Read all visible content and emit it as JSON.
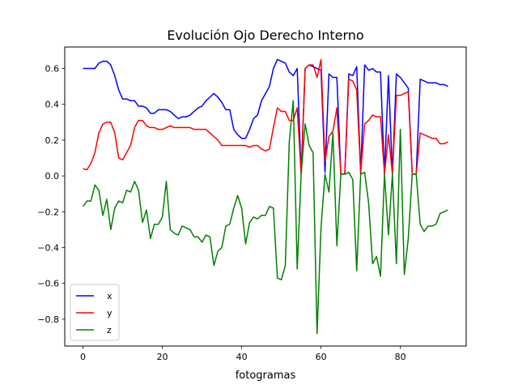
{
  "chart_data": {
    "type": "line",
    "title": "Evolución Ojo Derecho Interno",
    "xlabel": "fotogramas",
    "ylabel": "",
    "xlim": [
      -4.6,
      96.6
    ],
    "ylim": [
      -0.95,
      0.72
    ],
    "xticks": [
      0,
      20,
      40,
      60,
      80
    ],
    "yticks": [
      -0.8,
      -0.6,
      -0.4,
      -0.2,
      0.0,
      0.2,
      0.4,
      0.6
    ],
    "xtick_labels": [
      "0",
      "20",
      "40",
      "60",
      "80"
    ],
    "ytick_labels": [
      "−0.8",
      "−0.6",
      "−0.4",
      "−0.2",
      "0.0",
      "0.2",
      "0.4",
      "0.6"
    ],
    "grid": false,
    "legend_position": "lower-left",
    "x": [
      0,
      1,
      2,
      3,
      4,
      5,
      6,
      7,
      8,
      9,
      10,
      11,
      12,
      13,
      14,
      15,
      16,
      17,
      18,
      19,
      20,
      21,
      22,
      23,
      24,
      25,
      26,
      27,
      28,
      29,
      30,
      31,
      32,
      33,
      34,
      35,
      36,
      37,
      38,
      39,
      40,
      41,
      42,
      43,
      44,
      45,
      46,
      47,
      48,
      49,
      50,
      51,
      52,
      53,
      54,
      55,
      56,
      57,
      58,
      59,
      60,
      61,
      62,
      63,
      64,
      65,
      66,
      67,
      68,
      69,
      70,
      71,
      72,
      73,
      74,
      75,
      76,
      77,
      78,
      79,
      80,
      81,
      82,
      83,
      84,
      85,
      86,
      87,
      88,
      89,
      90,
      91,
      92
    ],
    "series": [
      {
        "name": "x",
        "color": "#0000ff",
        "values": [
          0.6,
          0.6,
          0.6,
          0.6,
          0.63,
          0.64,
          0.64,
          0.62,
          0.56,
          0.48,
          0.43,
          0.43,
          0.42,
          0.42,
          0.39,
          0.39,
          0.38,
          0.35,
          0.35,
          0.37,
          0.37,
          0.37,
          0.36,
          0.34,
          0.32,
          0.33,
          0.33,
          0.34,
          0.36,
          0.38,
          0.39,
          0.42,
          0.44,
          0.46,
          0.44,
          0.41,
          0.37,
          0.37,
          0.26,
          0.23,
          0.21,
          0.21,
          0.26,
          0.32,
          0.34,
          0.42,
          0.46,
          0.5,
          0.6,
          0.65,
          0.64,
          0.63,
          0.58,
          0.56,
          0.6,
          0.01,
          0.6,
          0.62,
          0.61,
          0.6,
          0.59,
          0.02,
          0.57,
          0.55,
          0.55,
          0.01,
          0.01,
          0.57,
          0.56,
          0.61,
          0.01,
          0.62,
          0.59,
          0.6,
          0.58,
          0.58,
          0.01,
          0.56,
          0.01,
          0.57,
          0.55,
          0.52,
          0.49,
          0.01,
          0.01,
          0.54,
          0.53,
          0.52,
          0.52,
          0.52,
          0.51,
          0.51,
          0.5
        ]
      },
      {
        "name": "y",
        "color": "#ff0000",
        "values": [
          0.04,
          0.035,
          0.07,
          0.13,
          0.24,
          0.29,
          0.3,
          0.3,
          0.24,
          0.1,
          0.09,
          0.13,
          0.17,
          0.27,
          0.31,
          0.31,
          0.28,
          0.27,
          0.27,
          0.26,
          0.26,
          0.27,
          0.28,
          0.27,
          0.27,
          0.27,
          0.27,
          0.27,
          0.26,
          0.26,
          0.26,
          0.26,
          0.24,
          0.22,
          0.2,
          0.17,
          0.17,
          0.17,
          0.17,
          0.17,
          0.17,
          0.17,
          0.16,
          0.17,
          0.17,
          0.15,
          0.14,
          0.15,
          0.27,
          0.38,
          0.36,
          0.36,
          0.31,
          0.31,
          0.38,
          0.01,
          0.6,
          0.62,
          0.62,
          0.55,
          0.65,
          0.08,
          0.22,
          0.25,
          0.38,
          0.01,
          0.01,
          0.54,
          0.53,
          0.48,
          0.02,
          0.29,
          0.31,
          0.34,
          0.33,
          0.33,
          0.01,
          0.23,
          0.01,
          0.45,
          0.45,
          0.46,
          0.47,
          0.01,
          0.01,
          0.24,
          0.23,
          0.22,
          0.21,
          0.21,
          0.18,
          0.18,
          0.19
        ]
      },
      {
        "name": "z",
        "color": "#008000",
        "values": [
          -0.17,
          -0.14,
          -0.14,
          -0.05,
          -0.08,
          -0.22,
          -0.13,
          -0.3,
          -0.18,
          -0.14,
          -0.15,
          -0.08,
          -0.09,
          -0.03,
          -0.08,
          -0.26,
          -0.19,
          -0.35,
          -0.27,
          -0.27,
          -0.23,
          -0.03,
          -0.3,
          -0.32,
          -0.33,
          -0.28,
          -0.29,
          -0.3,
          -0.34,
          -0.34,
          -0.37,
          -0.33,
          -0.34,
          -0.5,
          -0.42,
          -0.4,
          -0.28,
          -0.27,
          -0.18,
          -0.11,
          -0.18,
          -0.38,
          -0.26,
          -0.23,
          -0.24,
          -0.22,
          -0.22,
          -0.17,
          -0.18,
          -0.57,
          -0.58,
          -0.5,
          0.19,
          0.42,
          -0.52,
          0.01,
          0.29,
          0.17,
          0.13,
          -0.88,
          -0.29,
          0.01,
          -0.09,
          0.24,
          -0.39,
          0.01,
          0.01,
          0.02,
          -0.02,
          -0.53,
          0.01,
          0.02,
          -0.15,
          -0.49,
          -0.45,
          -0.56,
          0.01,
          -0.33,
          0.01,
          -0.49,
          0.26,
          -0.55,
          -0.35,
          0.01,
          0.01,
          -0.27,
          -0.31,
          -0.28,
          -0.28,
          -0.27,
          -0.21,
          -0.2,
          -0.19
        ]
      }
    ]
  }
}
